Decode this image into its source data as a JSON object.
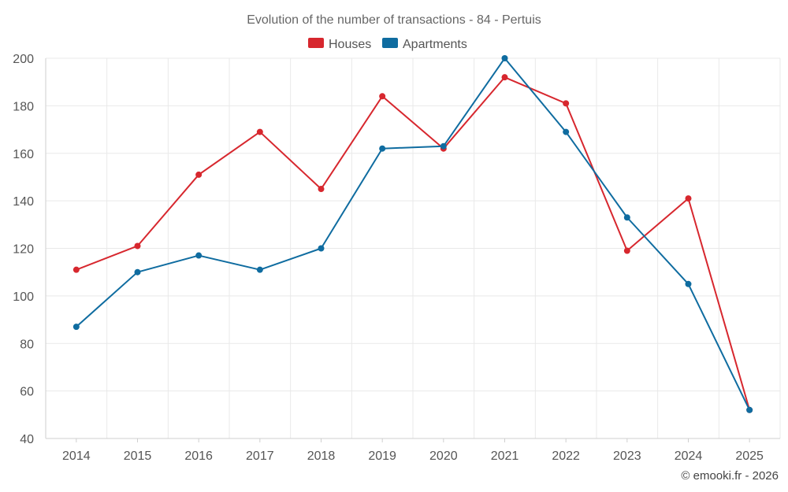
{
  "chart_data": {
    "type": "line",
    "title": "Evolution of the number of transactions - 84 - Pertuis",
    "categories": [
      "2014",
      "2015",
      "2016",
      "2017",
      "2018",
      "2019",
      "2020",
      "2021",
      "2022",
      "2023",
      "2024",
      "2025"
    ],
    "series": [
      {
        "name": "Houses",
        "color": "#d7272e",
        "values": [
          111,
          121,
          151,
          169,
          145,
          184,
          162,
          192,
          181,
          119,
          141,
          52
        ]
      },
      {
        "name": "Apartments",
        "color": "#0f6ca0",
        "values": [
          87,
          110,
          117,
          111,
          120,
          162,
          163,
          200,
          169,
          133,
          105,
          52
        ]
      }
    ],
    "ylim": [
      40,
      200
    ],
    "yticks": [
      40,
      60,
      80,
      100,
      120,
      140,
      160,
      180,
      200
    ],
    "ytick_labels": [
      "40",
      "60",
      "80",
      "100",
      "120",
      "140",
      "160",
      "180",
      "200"
    ],
    "xlabel": "",
    "ylabel": "",
    "grid": true,
    "legend_position": "top-center"
  },
  "credit": "© emooki.fr - 2026"
}
